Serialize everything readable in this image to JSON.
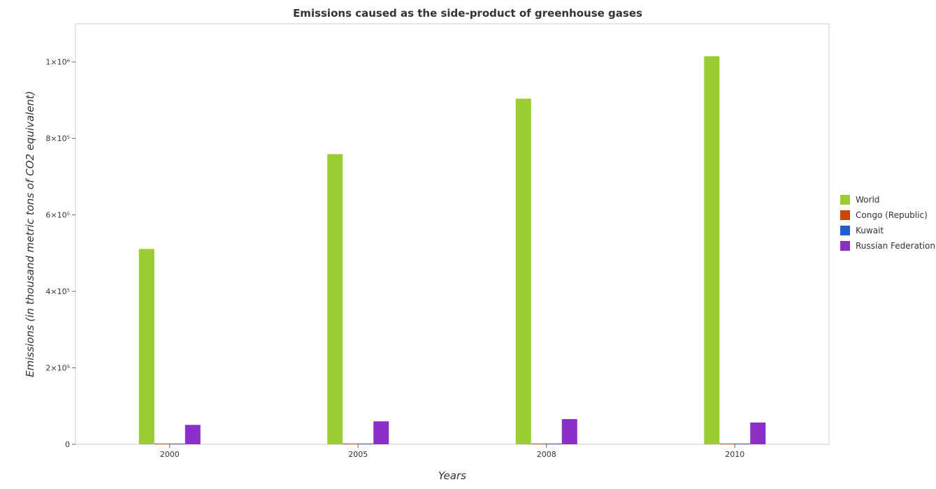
{
  "chart_data": {
    "type": "bar",
    "title": "Emissions caused as the side-product of greenhouse gases",
    "xlabel": "Years",
    "ylabel": "Emissions (in thousand metric tons of CO2 equivalent)",
    "categories": [
      "2000",
      "2005",
      "2008",
      "2010"
    ],
    "ylim": [
      0,
      1100000
    ],
    "yticks": [
      0,
      200000,
      400000,
      600000,
      800000,
      1000000
    ],
    "ytick_labels": [
      "0",
      "2×10⁵",
      "4×10⁵",
      "6×10⁵",
      "8×10⁵",
      "1×10⁶"
    ],
    "grid": false,
    "legend_position": "right",
    "series": [
      {
        "name": "World",
        "color": "#9acd32",
        "values": [
          511000,
          759000,
          904000,
          1015000
        ]
      },
      {
        "name": "Congo (Republic)",
        "color": "#cc4400",
        "values": [
          100,
          150,
          200,
          250
        ]
      },
      {
        "name": "Kuwait",
        "color": "#1f5fcc",
        "values": [
          700,
          1000,
          1400,
          1700
        ]
      },
      {
        "name": "Russian Federation",
        "color": "#8b2fc9",
        "values": [
          50800,
          60000,
          66000,
          57000
        ]
      }
    ]
  }
}
